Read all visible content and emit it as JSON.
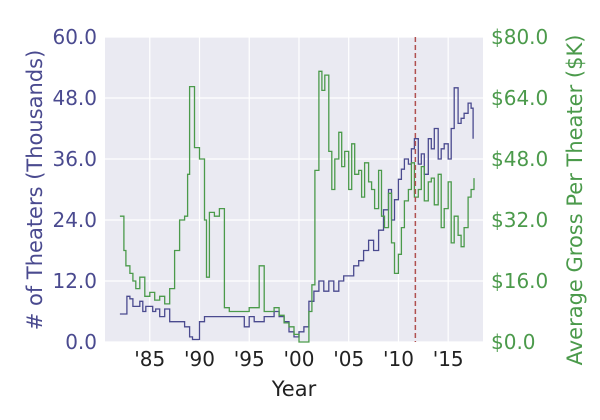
{
  "chart_data": {
    "type": "line",
    "title": "",
    "xlabel": "Year",
    "ylabel_left": "# of Theaters (Thousands)",
    "ylabel_right": "Average Gross Per Theater ($K)",
    "xlim": [
      1980.5,
      2018.5
    ],
    "ylim_left": [
      0,
      60
    ],
    "ylim_right": [
      0,
      80
    ],
    "x_ticks": [
      1985,
      1990,
      1995,
      2000,
      2005,
      2010,
      2015
    ],
    "x_tick_labels": [
      "'85",
      "'90",
      "'95",
      "'00",
      "'05",
      "'10",
      "'15"
    ],
    "y_left_ticks": [
      0,
      12,
      24,
      36,
      48,
      60
    ],
    "y_left_tick_labels": [
      "0.0",
      "12.0",
      "24.0",
      "36.0",
      "48.0",
      "60.0"
    ],
    "y_right_ticks": [
      0,
      16,
      32,
      48,
      64,
      80
    ],
    "y_right_tick_labels": [
      "$0.0",
      "$16.0",
      "$32.0",
      "$48.0",
      "$64.0",
      "$80.0"
    ],
    "grid": true,
    "vline": {
      "x": 2011.7,
      "color": "#b05050"
    },
    "colors": {
      "left": "#4a4a8f",
      "right": "#4b9a4b",
      "background": "#eaeaf2",
      "grid": "#ffffff"
    },
    "series": [
      {
        "name": "# of Theaters (Thousands)",
        "axis": "left",
        "x": [
          1982,
          1982.5,
          1982.7,
          1983,
          1983.3,
          1983.6,
          1984,
          1984.3,
          1984.6,
          1985,
          1985.3,
          1985.6,
          1986,
          1986.5,
          1987,
          1987.5,
          1988,
          1988.5,
          1989,
          1989.3,
          1989.6,
          1990,
          1990.5,
          1991,
          1992,
          1993,
          1994,
          1994.5,
          1995,
          1995.5,
          1996,
          1996.5,
          1997,
          1997.5,
          1998,
          1998.5,
          1999,
          1999.5,
          2000,
          2000.5,
          2001,
          2001.5,
          2002,
          2002.5,
          2003,
          2003.5,
          2004,
          2004.5,
          2005,
          2005.5,
          2006,
          2006.5,
          2007,
          2007.5,
          2008,
          2008.5,
          2009,
          2009.3,
          2009.6,
          2010,
          2010.3,
          2010.6,
          2011,
          2011.3,
          2011.6,
          2012,
          2012.3,
          2012.6,
          2013,
          2013.3,
          2013.6,
          2014,
          2014.3,
          2014.6,
          2015,
          2015.3,
          2015.6,
          2016,
          2016.3,
          2016.6,
          2017,
          2017.3,
          2017.5
        ],
        "values": [
          5.5,
          5.5,
          9,
          8.5,
          7,
          7,
          8,
          6,
          7,
          7,
          6,
          6.5,
          5,
          6.5,
          4,
          4,
          4,
          3,
          1,
          0.5,
          0.5,
          4,
          5,
          5,
          5,
          5,
          5,
          3,
          5,
          4,
          4,
          5,
          5,
          6,
          5,
          4,
          2,
          1,
          2,
          3,
          8,
          10,
          12,
          10,
          12,
          10,
          12,
          13,
          13,
          15,
          16,
          18,
          20,
          18,
          22,
          26,
          30,
          24,
          28,
          32,
          34,
          36,
          35,
          38,
          40,
          35,
          37,
          33,
          40,
          38,
          42,
          36,
          38,
          39,
          36,
          42,
          50,
          43,
          44,
          45,
          47,
          46,
          40
        ]
      },
      {
        "name": "Average Gross Per Theater ($K)",
        "axis": "right",
        "x": [
          1982,
          1982.4,
          1982.6,
          1983,
          1983.3,
          1983.6,
          1984,
          1984.5,
          1985,
          1985.5,
          1986,
          1986.5,
          1987,
          1987.5,
          1988,
          1988.5,
          1988.8,
          1989,
          1989.5,
          1990,
          1990.5,
          1990.7,
          1991,
          1991.5,
          1992,
          1992.5,
          1993,
          1994,
          1995,
          1995.5,
          1996,
          1996.5,
          1997,
          1997.5,
          1998,
          1998.5,
          1999,
          1999.5,
          2000,
          2000.5,
          2001,
          2001.3,
          2001.6,
          2002,
          2002.3,
          2002.6,
          2003,
          2003.3,
          2003.6,
          2004,
          2004.3,
          2004.6,
          2005,
          2005.3,
          2005.6,
          2006,
          2006.3,
          2006.6,
          2007,
          2007.3,
          2007.6,
          2008,
          2008.3,
          2008.6,
          2009,
          2009.3,
          2009.6,
          2010,
          2010.3,
          2010.6,
          2011,
          2011.3,
          2011.6,
          2012,
          2012.3,
          2012.6,
          2013,
          2013.3,
          2013.6,
          2014,
          2014.3,
          2014.6,
          2015,
          2015.3,
          2015.6,
          2016,
          2016.3,
          2016.6,
          2017,
          2017.3,
          2017.6
        ],
        "values": [
          33,
          24,
          20,
          18,
          16,
          14,
          17,
          12,
          13,
          11,
          12,
          10,
          14,
          24,
          32,
          33,
          44,
          67,
          51,
          48,
          32,
          17,
          34,
          33,
          35,
          9,
          8,
          8,
          9,
          9,
          20,
          8,
          8,
          9,
          7,
          5,
          4,
          2,
          0,
          0,
          8,
          15,
          45,
          71,
          66,
          70,
          50,
          40,
          48,
          55,
          46,
          50,
          40,
          52,
          44,
          45,
          38,
          47,
          42,
          40,
          35,
          45,
          33,
          30,
          39,
          26,
          18,
          23,
          30,
          37,
          40,
          47,
          38,
          40,
          46,
          37,
          42,
          43,
          36,
          44,
          30,
          35,
          42,
          26,
          33,
          28,
          25,
          30,
          38,
          40,
          43
        ]
      }
    ]
  }
}
